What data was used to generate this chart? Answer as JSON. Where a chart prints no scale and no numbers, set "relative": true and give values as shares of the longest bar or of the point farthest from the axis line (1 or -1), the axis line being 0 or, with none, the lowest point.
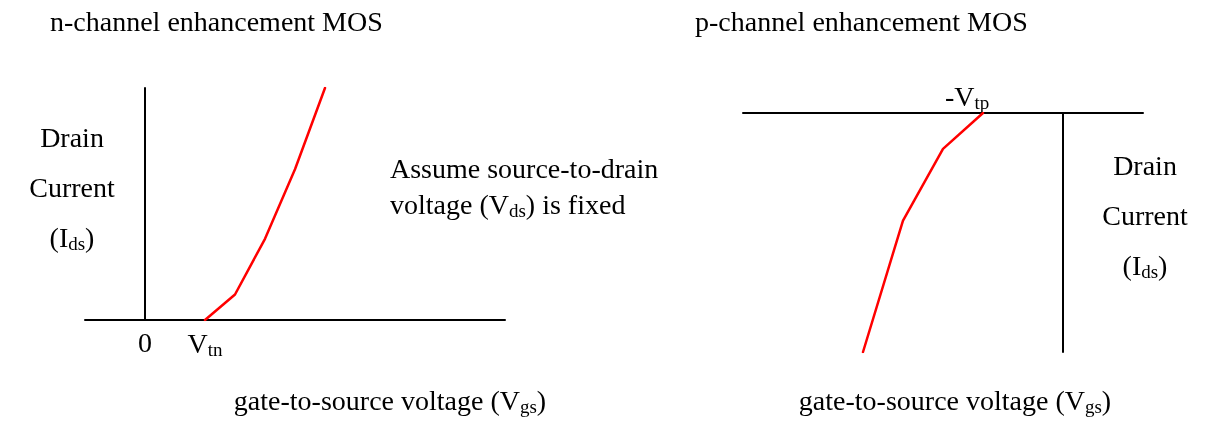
{
  "chart_data": [
    {
      "type": "line",
      "title": "n-channel enhancement MOS",
      "xlabel": "gate-to-source voltage (V$_{gs}$)",
      "ylabel": "Drain Current (I$_{ds}$)",
      "relative": true,
      "annotations": [
        "Assume source-to-drain voltage (V$_{ds}$) is fixed"
      ],
      "categories": [
        null,
        null,
        "0",
        null,
        "V$_{tn}$",
        null,
        null,
        null,
        null,
        null,
        null,
        null,
        null,
        null,
        null
      ],
      "series": [
        {
          "color": "#ff0000",
          "values": [
            null,
            null,
            null,
            null,
            0,
            0.11,
            0.35,
            0.65,
            1,
            null,
            null,
            null,
            null,
            null,
            null
          ]
        }
      ],
      "marker": "none"
    },
    {
      "type": "line",
      "title": "p-channel enhancement MOS",
      "xlabel": "gate-to-source voltage (V$_{gs}$)",
      "ylabel": "Drain Current (I$_{ds}$)",
      "relative": true,
      "annotations": [
        "-V$_{tp}$"
      ],
      "categories": [
        null,
        null,
        null,
        null,
        null,
        null,
        null,
        null,
        null,
        null,
        null
      ],
      "series": [
        {
          "color": "#ff0000",
          "values": [
            null,
            null,
            null,
            -1,
            -0.45,
            -0.15,
            0,
            null,
            null,
            null,
            null
          ]
        }
      ],
      "marker": "none"
    }
  ]
}
